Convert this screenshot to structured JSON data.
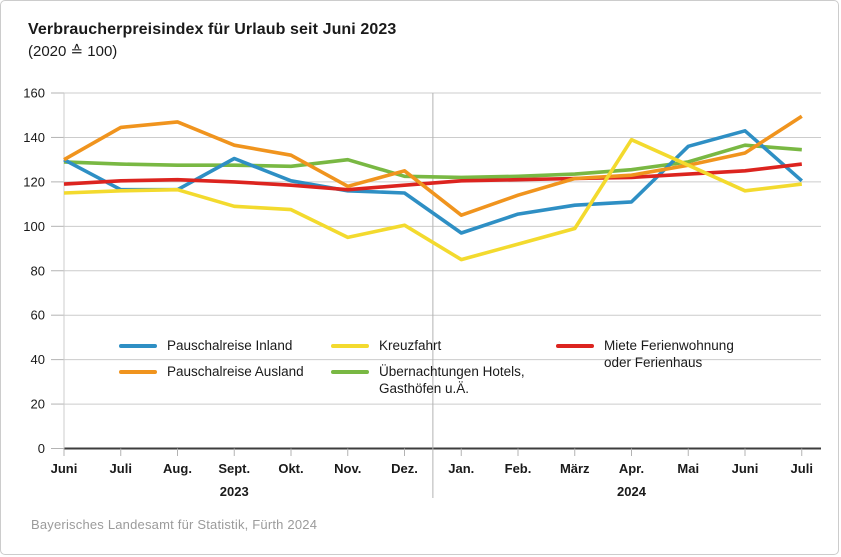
{
  "header": {
    "title": "Verbraucherpreisindex für Urlaub seit Juni 2023",
    "subtitle": "(2020 ≙ 100)"
  },
  "footer": {
    "source": "Bayerisches Landesamt für Statistik, Fürth 2024"
  },
  "chart_data": {
    "type": "line",
    "title": "Verbraucherpreisindex für Urlaub seit Juni 2023",
    "subtitle": "(2020 ≙ 100)",
    "categories": [
      "Juni",
      "Juli",
      "Aug.",
      "Sept.",
      "Okt.",
      "Nov.",
      "Dez.",
      "Jan.",
      "Feb.",
      "März",
      "Apr.",
      "Mai",
      "Juni",
      "Juli"
    ],
    "year_labels": [
      {
        "label": "2023",
        "index": 3
      },
      {
        "label": "2024",
        "index": 10
      }
    ],
    "year_divider_after_index": 6,
    "ylim": [
      0,
      160
    ],
    "ytick_step": 20,
    "grid": true,
    "legend_position": "inside-bottom",
    "series": [
      {
        "name": "Pauschalreise Inland",
        "color": "#2e8fc4",
        "values": [
          130,
          116.5,
          116.5,
          130.5,
          120.5,
          116,
          115,
          97,
          105.5,
          109.5,
          111,
          136,
          143,
          120.5
        ]
      },
      {
        "name": "Pauschalreise Ausland",
        "color": "#f0941e",
        "values": [
          130,
          144.5,
          147,
          136.5,
          132,
          118,
          125,
          105,
          114,
          121.5,
          123,
          127.5,
          133,
          149.5
        ]
      },
      {
        "name": "Kreuzfahrt",
        "color": "#f3da2e",
        "values": [
          115,
          116,
          116.5,
          109,
          107.5,
          95,
          100.5,
          85,
          92,
          99,
          139,
          127.5,
          116,
          119
        ]
      },
      {
        "name": "Übernachtungen Hotels, Gasthöfen u.Ä.",
        "color": "#79b843",
        "values": [
          129,
          128,
          127.5,
          127.5,
          127,
          130,
          122.5,
          122,
          122.5,
          123.5,
          125.5,
          129,
          136.5,
          134.5
        ]
      },
      {
        "name": "Miete Ferienwohnung oder Ferienhaus",
        "color": "#dc241f",
        "values": [
          119,
          120.5,
          121,
          120,
          118.5,
          116.5,
          118.5,
          120.5,
          121,
          121.5,
          122,
          123.5,
          125,
          128
        ]
      }
    ]
  }
}
